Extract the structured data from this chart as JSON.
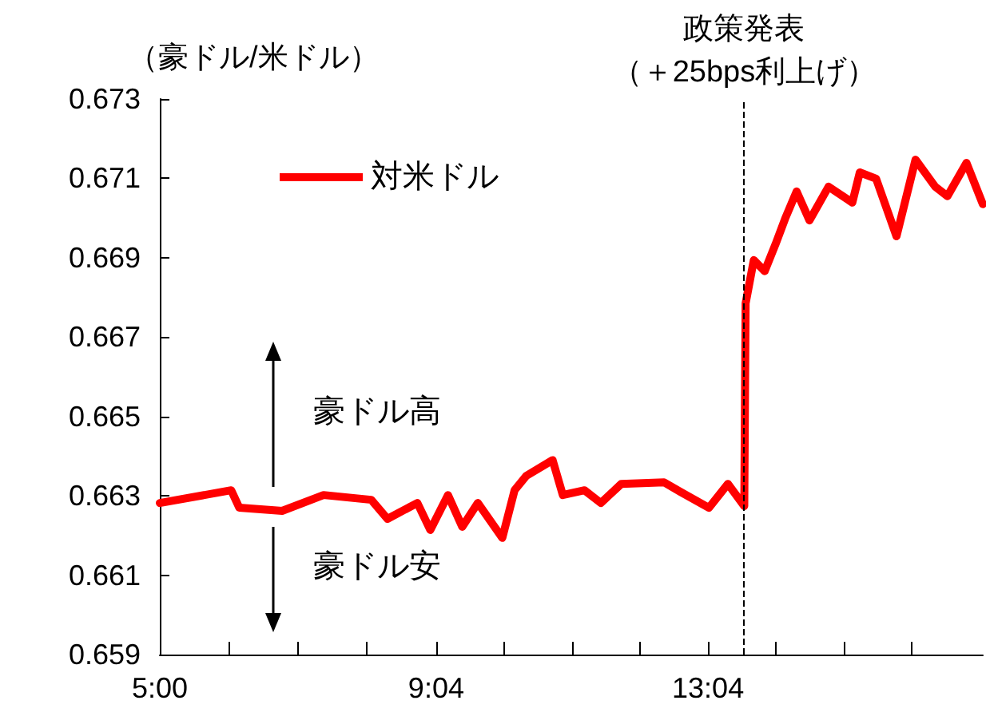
{
  "chart_data": {
    "type": "line",
    "ylabel": "（豪ドル/米ドル）",
    "x": [
      5.0,
      6.05,
      6.17,
      6.8,
      7.41,
      8.11,
      8.35,
      8.79,
      8.98,
      9.24,
      9.45,
      9.68,
      10.04,
      10.22,
      10.39,
      10.78,
      10.93,
      11.25,
      11.49,
      11.79,
      12.42,
      12.66,
      13.08,
      13.36,
      13.6,
      13.62,
      13.74,
      13.9,
      14.06,
      14.2,
      14.37,
      14.56,
      14.84,
      15.19,
      15.3,
      15.54,
      15.84,
      16.12,
      16.41,
      16.59,
      16.87,
      17.11
    ],
    "series": [
      {
        "name": "対米ドル",
        "color": "#ff0000",
        "values": [
          0.66282,
          0.66314,
          0.6627,
          0.66262,
          0.66302,
          0.6629,
          0.66242,
          0.66282,
          0.66214,
          0.66302,
          0.66222,
          0.66282,
          0.66194,
          0.66314,
          0.6635,
          0.6639,
          0.66302,
          0.66314,
          0.66282,
          0.6633,
          0.66334,
          0.6631,
          0.6627,
          0.6633,
          0.66274,
          0.66785,
          0.66894,
          0.66866,
          0.66934,
          0.66998,
          0.67067,
          0.66994,
          0.67079,
          0.67039,
          0.67115,
          0.67099,
          0.66954,
          0.67147,
          0.67079,
          0.67055,
          0.67139,
          0.67035
        ]
      }
    ],
    "xlim": [
      5,
      17.11
    ],
    "xticks": [
      {
        "value": 5,
        "label": "5:00"
      },
      {
        "value": 6.0167,
        "label": null
      },
      {
        "value": 7.0333,
        "label": null
      },
      {
        "value": 8.05,
        "label": null
      },
      {
        "value": 9.0667,
        "label": "9:04"
      },
      {
        "value": 10.0667,
        "label": null
      },
      {
        "value": 11.0667,
        "label": null
      },
      {
        "value": 12.0667,
        "label": null
      },
      {
        "value": 13.0667,
        "label": "13:04"
      },
      {
        "value": 14.0667,
        "label": null
      },
      {
        "value": 15.0667,
        "label": null
      },
      {
        "value": 16.0667,
        "label": null
      }
    ],
    "ylim": [
      0.659,
      0.673
    ],
    "yticks": [
      0.659,
      0.661,
      0.663,
      0.665,
      0.667,
      0.669,
      0.671,
      0.673
    ],
    "ref_lines": [
      {
        "axis": "x",
        "value": 13.6,
        "label": "政策発表",
        "color": "#000000",
        "line_style": "dashed"
      }
    ],
    "annotations": [
      "（＋25bps利上げ）",
      "豪ドル高",
      "豪ドル安"
    ],
    "legend": "top left",
    "grid": false,
    "marker": "none",
    "line_style": "solid"
  }
}
